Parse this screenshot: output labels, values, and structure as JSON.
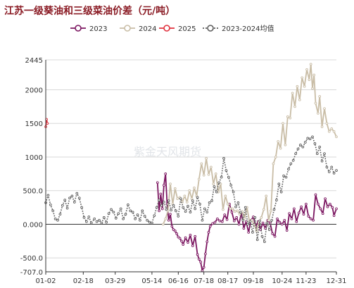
{
  "title": "江苏一级葵油和三级菜油价差（元/吨）",
  "watermark": "紫金天风期货",
  "colors": {
    "s2023": "#7b1560",
    "s2024": "#c9bda6",
    "s2025": "#e0303c",
    "savg": "#5c5c5c",
    "grid": "#d8d8d8",
    "axis": "#333333"
  },
  "chart_data": {
    "type": "line",
    "xlabel": "",
    "ylabel": "",
    "ylim": [
      -707.0,
      2445
    ],
    "yticks": [
      "2445",
      "2000",
      "1500",
      "1000",
      "500.0",
      "0.000",
      "-500.0",
      "-707.0"
    ],
    "ytick_values": [
      2445,
      2000,
      1500,
      1000,
      500,
      0,
      -500,
      -707
    ],
    "x_range": [
      "01-02",
      "12-31"
    ],
    "xticks": [
      "01-02",
      "02-18",
      "03-29",
      "05-14",
      "06-16",
      "07-18",
      "08-17",
      "09-18",
      "10-24",
      "11-23",
      "12-31"
    ],
    "grid": true,
    "legend_position": "top",
    "series": [
      {
        "name": "2023",
        "key": "s2023",
        "style": "solid-markers",
        "points": [
          [
            "05-21",
            620
          ],
          [
            "05-23",
            200
          ],
          [
            "05-25",
            450
          ],
          [
            "05-27",
            230
          ],
          [
            "05-29",
            580
          ],
          [
            "05-31",
            750
          ],
          [
            "06-02",
            300
          ],
          [
            "06-04",
            60
          ],
          [
            "06-06",
            150
          ],
          [
            "06-08",
            -30
          ],
          [
            "06-10",
            -80
          ],
          [
            "06-12",
            -100
          ],
          [
            "06-14",
            -140
          ],
          [
            "06-16",
            -190
          ],
          [
            "06-18",
            -210
          ],
          [
            "06-20",
            -250
          ],
          [
            "06-22",
            -300
          ],
          [
            "06-25",
            -200
          ],
          [
            "06-28",
            -270
          ],
          [
            "07-01",
            -160
          ],
          [
            "07-04",
            -320
          ],
          [
            "07-07",
            -180
          ],
          [
            "07-10",
            -450
          ],
          [
            "07-12",
            -520
          ],
          [
            "07-14",
            -560
          ],
          [
            "07-16",
            -690
          ],
          [
            "07-18",
            -640
          ],
          [
            "07-20",
            -440
          ],
          [
            "07-22",
            -260
          ],
          [
            "07-24",
            -120
          ],
          [
            "07-26",
            -30
          ],
          [
            "07-29",
            10
          ],
          [
            "08-01",
            30
          ],
          [
            "08-04",
            80
          ],
          [
            "08-07",
            50
          ],
          [
            "08-10",
            40
          ],
          [
            "08-13",
            140
          ],
          [
            "08-16",
            70
          ],
          [
            "08-19",
            300
          ],
          [
            "08-22",
            180
          ],
          [
            "08-25",
            50
          ],
          [
            "08-28",
            100
          ],
          [
            "08-31",
            0
          ],
          [
            "09-03",
            170
          ],
          [
            "09-06",
            -60
          ],
          [
            "09-09",
            40
          ],
          [
            "09-12",
            -120
          ],
          [
            "09-15",
            60
          ],
          [
            "09-18",
            110
          ],
          [
            "09-21",
            -30
          ],
          [
            "09-24",
            40
          ],
          [
            "09-27",
            -80
          ],
          [
            "09-30",
            20
          ],
          [
            "10-03",
            -60
          ],
          [
            "10-06",
            60
          ],
          [
            "10-09",
            20
          ],
          [
            "10-12",
            -140
          ],
          [
            "10-15",
            -180
          ],
          [
            "10-18",
            80
          ],
          [
            "10-21",
            30
          ],
          [
            "10-24",
            0
          ],
          [
            "10-27",
            60
          ],
          [
            "10-30",
            -90
          ],
          [
            "11-02",
            160
          ],
          [
            "11-05",
            80
          ],
          [
            "11-08",
            230
          ],
          [
            "11-11",
            40
          ],
          [
            "11-14",
            170
          ],
          [
            "11-17",
            260
          ],
          [
            "11-20",
            150
          ],
          [
            "11-23",
            300
          ],
          [
            "11-26",
            120
          ],
          [
            "11-29",
            80
          ],
          [
            "12-02",
            60
          ],
          [
            "12-05",
            440
          ],
          [
            "12-08",
            300
          ],
          [
            "12-11",
            230
          ],
          [
            "12-14",
            160
          ],
          [
            "12-17",
            380
          ],
          [
            "12-20",
            260
          ],
          [
            "12-23",
            300
          ],
          [
            "12-26",
            250
          ],
          [
            "12-28",
            130
          ],
          [
            "12-31",
            230
          ]
        ]
      },
      {
        "name": "2024",
        "key": "s2024",
        "style": "solid-markers",
        "points": [
          [
            "05-28",
            0
          ],
          [
            "05-31",
            80
          ],
          [
            "06-03",
            200
          ],
          [
            "06-06",
            600
          ],
          [
            "06-09",
            300
          ],
          [
            "06-12",
            530
          ],
          [
            "06-15",
            380
          ],
          [
            "06-18",
            400
          ],
          [
            "06-21",
            330
          ],
          [
            "06-24",
            420
          ],
          [
            "06-27",
            330
          ],
          [
            "06-30",
            500
          ],
          [
            "07-03",
            380
          ],
          [
            "07-06",
            540
          ],
          [
            "07-09",
            420
          ],
          [
            "07-12",
            670
          ],
          [
            "07-15",
            900
          ],
          [
            "07-18",
            730
          ],
          [
            "07-21",
            980
          ],
          [
            "07-24",
            740
          ],
          [
            "07-27",
            850
          ],
          [
            "07-30",
            600
          ],
          [
            "08-02",
            750
          ],
          [
            "08-05",
            480
          ],
          [
            "08-08",
            600
          ],
          [
            "08-11",
            220
          ],
          [
            "08-14",
            420
          ],
          [
            "08-17",
            300
          ],
          [
            "08-20",
            230
          ],
          [
            "08-23",
            230
          ],
          [
            "08-26",
            190
          ],
          [
            "08-29",
            200
          ],
          [
            "09-01",
            150
          ],
          [
            "09-04",
            190
          ],
          [
            "09-07",
            90
          ],
          [
            "09-10",
            250
          ],
          [
            "09-13",
            50
          ],
          [
            "09-16",
            60
          ],
          [
            "09-19",
            0
          ],
          [
            "09-22",
            -100
          ],
          [
            "09-25",
            30
          ],
          [
            "09-28",
            100
          ],
          [
            "10-01",
            220
          ],
          [
            "10-04",
            420
          ],
          [
            "10-07",
            60
          ],
          [
            "10-10",
            200
          ],
          [
            "10-13",
            900
          ],
          [
            "10-16",
            1000
          ],
          [
            "10-19",
            1230
          ],
          [
            "10-22",
            1130
          ],
          [
            "10-25",
            1500
          ],
          [
            "10-28",
            1180
          ],
          [
            "10-31",
            1600
          ],
          [
            "11-03",
            1580
          ],
          [
            "11-06",
            1950
          ],
          [
            "11-09",
            1750
          ],
          [
            "11-12",
            2050
          ],
          [
            "11-15",
            1850
          ],
          [
            "11-18",
            2180
          ],
          [
            "11-21",
            2050
          ],
          [
            "11-24",
            2300
          ],
          [
            "11-27",
            2150
          ],
          [
            "11-29",
            2380
          ],
          [
            "12-01",
            2020
          ],
          [
            "12-03",
            2220
          ],
          [
            "12-05",
            1800
          ],
          [
            "12-08",
            1650
          ],
          [
            "12-10",
            1900
          ],
          [
            "12-13",
            1450
          ],
          [
            "12-16",
            1720
          ],
          [
            "12-19",
            1500
          ],
          [
            "12-22",
            1380
          ],
          [
            "12-25",
            1420
          ],
          [
            "12-28",
            1380
          ],
          [
            "12-31",
            1300
          ]
        ]
      },
      {
        "name": "2025",
        "key": "s2025",
        "style": "solid-markers",
        "points": [
          [
            "01-02",
            1450
          ],
          [
            "01-03",
            1560
          ],
          [
            "01-04",
            1500
          ]
        ]
      },
      {
        "name": "2023-2024均值",
        "key": "savg",
        "style": "dotted-markers",
        "points": [
          [
            "01-02",
            320
          ],
          [
            "01-05",
            430
          ],
          [
            "01-08",
            290
          ],
          [
            "01-11",
            200
          ],
          [
            "01-14",
            80
          ],
          [
            "01-17",
            60
          ],
          [
            "01-20",
            150
          ],
          [
            "01-23",
            280
          ],
          [
            "01-26",
            360
          ],
          [
            "01-29",
            240
          ],
          [
            "02-01",
            390
          ],
          [
            "02-04",
            420
          ],
          [
            "02-07",
            330
          ],
          [
            "02-10",
            460
          ],
          [
            "02-13",
            390
          ],
          [
            "02-16",
            250
          ],
          [
            "02-19",
            100
          ],
          [
            "02-22",
            40
          ],
          [
            "02-25",
            110
          ],
          [
            "02-28",
            20
          ],
          [
            "03-03",
            80
          ],
          [
            "03-06",
            40
          ],
          [
            "03-09",
            60
          ],
          [
            "03-12",
            20
          ],
          [
            "03-15",
            100
          ],
          [
            "03-18",
            30
          ],
          [
            "03-21",
            160
          ],
          [
            "03-24",
            220
          ],
          [
            "03-27",
            180
          ],
          [
            "03-30",
            90
          ],
          [
            "04-02",
            160
          ],
          [
            "04-05",
            230
          ],
          [
            "04-08",
            80
          ],
          [
            "04-11",
            150
          ],
          [
            "04-14",
            290
          ],
          [
            "04-17",
            200
          ],
          [
            "04-20",
            180
          ],
          [
            "04-23",
            80
          ],
          [
            "04-26",
            140
          ],
          [
            "04-29",
            60
          ],
          [
            "05-02",
            200
          ],
          [
            "05-05",
            120
          ],
          [
            "05-08",
            60
          ],
          [
            "05-11",
            30
          ],
          [
            "05-14",
            20
          ],
          [
            "05-17",
            130
          ],
          [
            "05-20",
            250
          ],
          [
            "05-23",
            360
          ],
          [
            "05-26",
            280
          ],
          [
            "05-29",
            330
          ],
          [
            "06-01",
            220
          ],
          [
            "06-04",
            350
          ],
          [
            "06-07",
            210
          ],
          [
            "06-10",
            280
          ],
          [
            "06-13",
            200
          ],
          [
            "06-16",
            120
          ],
          [
            "06-19",
            380
          ],
          [
            "06-22",
            250
          ],
          [
            "06-25",
            190
          ],
          [
            "06-28",
            270
          ],
          [
            "07-01",
            180
          ],
          [
            "07-04",
            350
          ],
          [
            "07-07",
            230
          ],
          [
            "07-10",
            400
          ],
          [
            "07-13",
            300
          ],
          [
            "07-16",
            60
          ],
          [
            "07-19",
            230
          ],
          [
            "07-22",
            180
          ],
          [
            "07-25",
            320
          ],
          [
            "07-28",
            350
          ],
          [
            "07-31",
            560
          ],
          [
            "08-03",
            480
          ],
          [
            "08-06",
            620
          ],
          [
            "08-09",
            700
          ],
          [
            "08-12",
            980
          ],
          [
            "08-15",
            800
          ],
          [
            "08-18",
            700
          ],
          [
            "08-21",
            580
          ],
          [
            "08-24",
            480
          ],
          [
            "08-27",
            260
          ],
          [
            "08-30",
            320
          ],
          [
            "09-02",
            180
          ],
          [
            "09-05",
            60
          ],
          [
            "09-08",
            250
          ],
          [
            "09-11",
            0
          ],
          [
            "09-14",
            40
          ],
          [
            "09-17",
            -120
          ],
          [
            "09-20",
            100
          ],
          [
            "09-23",
            -230
          ],
          [
            "09-26",
            50
          ],
          [
            "09-29",
            -180
          ],
          [
            "10-02",
            -260
          ],
          [
            "10-05",
            20
          ],
          [
            "10-08",
            -80
          ],
          [
            "10-11",
            60
          ],
          [
            "10-14",
            220
          ],
          [
            "10-17",
            360
          ],
          [
            "10-20",
            600
          ],
          [
            "10-23",
            480
          ],
          [
            "10-26",
            720
          ],
          [
            "10-29",
            700
          ],
          [
            "11-01",
            820
          ],
          [
            "11-04",
            900
          ],
          [
            "11-07",
            950
          ],
          [
            "11-10",
            1050
          ],
          [
            "11-13",
            1120
          ],
          [
            "11-16",
            1180
          ],
          [
            "11-19",
            1150
          ],
          [
            "11-22",
            1220
          ],
          [
            "11-25",
            1280
          ],
          [
            "11-28",
            1270
          ],
          [
            "12-01",
            1300
          ],
          [
            "12-04",
            1200
          ],
          [
            "12-07",
            1050
          ],
          [
            "12-10",
            1150
          ],
          [
            "12-13",
            940
          ],
          [
            "12-16",
            1050
          ],
          [
            "12-19",
            850
          ],
          [
            "12-22",
            780
          ],
          [
            "12-25",
            850
          ],
          [
            "12-28",
            760
          ],
          [
            "12-31",
            800
          ]
        ]
      }
    ]
  }
}
